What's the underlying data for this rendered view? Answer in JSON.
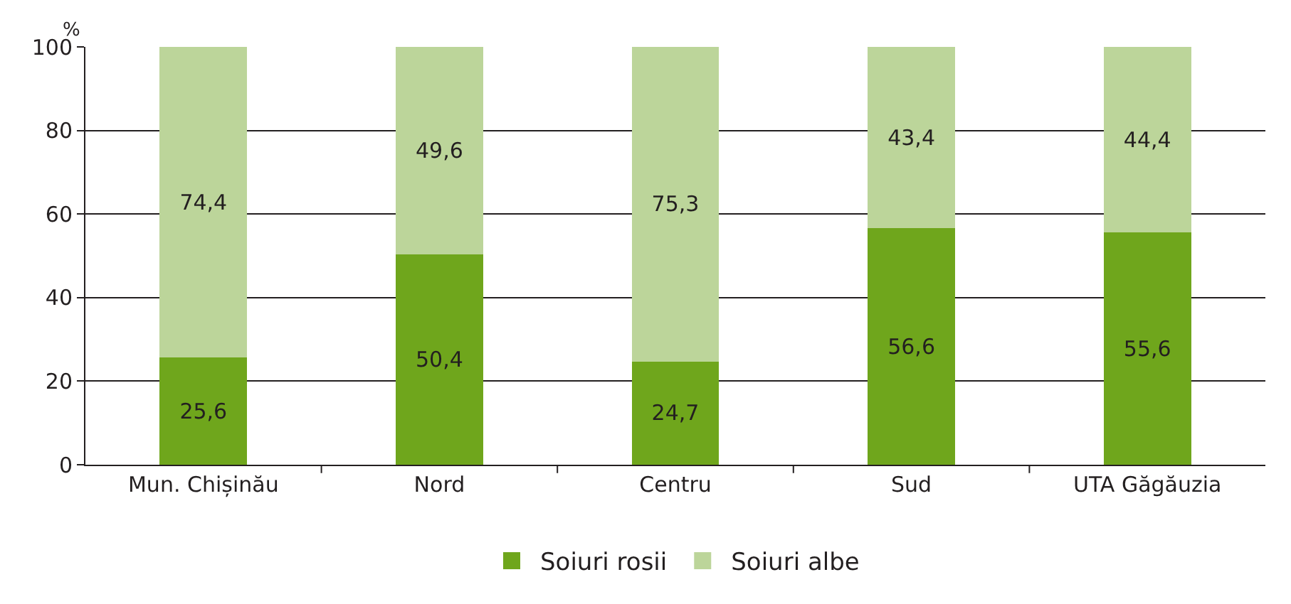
{
  "chart_data": {
    "type": "bar",
    "stacked": true,
    "ylabel": "%",
    "categories": [
      "Mun. Chișinău",
      "Nord",
      "Centru",
      "Sud",
      "UTA Găgăuzia"
    ],
    "series": [
      {
        "name": "Soiuri rosii",
        "color": "#6fa61c",
        "values": [
          25.6,
          50.4,
          24.7,
          56.6,
          55.6
        ],
        "value_labels": [
          "25,6",
          "50,4",
          "24,7",
          "56,6",
          "55,6"
        ]
      },
      {
        "name": "Soiuri albe",
        "color": "#bcd59a",
        "values": [
          74.4,
          49.6,
          75.3,
          43.4,
          44.4
        ],
        "value_labels": [
          "74,4",
          "49,6",
          "75,3",
          "43,4",
          "44,4"
        ]
      }
    ],
    "ylim": [
      0,
      100
    ],
    "yticks": [
      0,
      20,
      40,
      60,
      80,
      100
    ],
    "grid": "y",
    "legend": "bottom"
  }
}
